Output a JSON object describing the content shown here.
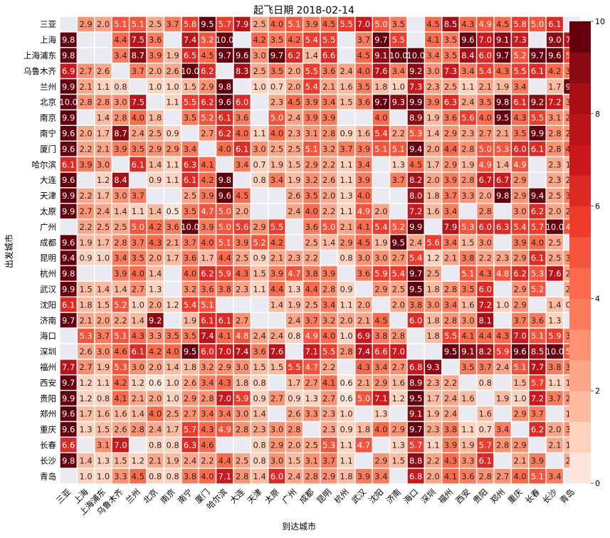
{
  "chart_data": {
    "type": "heatmap",
    "title": "起飞日期 2018-02-14",
    "xlabel": "到达城市",
    "ylabel": "出发城市",
    "x_categories": [
      "三亚",
      "上海",
      "上海浦东",
      "乌鲁木齐",
      "兰州",
      "北京",
      "南京",
      "南宁",
      "厦门",
      "哈尔滨",
      "大连",
      "天津",
      "太原",
      "广州",
      "成都",
      "昆明",
      "杭州",
      "武汉",
      "沈阳",
      "济南",
      "海口",
      "深圳",
      "福州",
      "西安",
      "贵阳",
      "郑州",
      "重庆",
      "长春",
      "长沙",
      "青岛"
    ],
    "y_categories": [
      "三亚",
      "上海",
      "上海浦东",
      "乌鲁木齐",
      "兰州",
      "北京",
      "南京",
      "南宁",
      "厦门",
      "哈尔滨",
      "大连",
      "天津",
      "太原",
      "广州",
      "成都",
      "昆明",
      "杭州",
      "武汉",
      "沈阳",
      "济南",
      "海口",
      "深圳",
      "福州",
      "西安",
      "贵阳",
      "郑州",
      "重庆",
      "长春",
      "长沙",
      "青岛"
    ],
    "vmin": 0,
    "vmax": 10,
    "colorbar_ticks": [
      0,
      2,
      4,
      6,
      8,
      10
    ],
    "colormap": {
      "levels": 15,
      "colors": [
        "#fee5d9",
        "#fdd3c0",
        "#fcbba1",
        "#fca689",
        "#fc9272",
        "#fb7c5c",
        "#fb6a4a",
        "#f4533c",
        "#ef3b2c",
        "#dd2a25",
        "#cb181d",
        "#b91419",
        "#a50f15",
        "#8c0b13",
        "#67000d"
      ],
      "missing_color": "#eaeaf2"
    },
    "values": [
      [
        null,
        2.9,
        2.0,
        5.1,
        5.1,
        2.5,
        3.7,
        5.8,
        9.5,
        5.7,
        7.9,
        2.5,
        4.0,
        5.1,
        3.9,
        4.5,
        5.5,
        7.0,
        5.0,
        3.5,
        null,
        4.5,
        8.5,
        4.3,
        4.9,
        4.5,
        5.8,
        5.0,
        6.1,
        null
      ],
      [
        9.8,
        null,
        null,
        4.4,
        7.5,
        3.6,
        null,
        7.4,
        5.2,
        10.0,
        null,
        4.2,
        3.5,
        4.2,
        5.4,
        5.5,
        null,
        3.7,
        9.7,
        5.5,
        null,
        4.1,
        3.5,
        9.6,
        7.0,
        9.1,
        7.3,
        null,
        9.0,
        7.7
      ],
      [
        9.8,
        null,
        null,
        3.4,
        8.7,
        3.9,
        1.9,
        6.5,
        4.5,
        9.7,
        9.6,
        3.0,
        9.7,
        6.2,
        1.4,
        6.6,
        null,
        4.5,
        9.1,
        10.0,
        10.0,
        3.4,
        3.5,
        8.4,
        6.0,
        9.7,
        5.2,
        9.7,
        9.6,
        5.5
      ],
      [
        6.9,
        2.7,
        2.6,
        null,
        3.7,
        2.0,
        2.6,
        10.0,
        6.2,
        null,
        8.3,
        2.5,
        3.5,
        2.0,
        5.5,
        3.6,
        2.4,
        4.0,
        7.6,
        3.4,
        9.2,
        3.0,
        7.3,
        3.4,
        5.4,
        4.3,
        5.5,
        6.1,
        4.2,
        3.9
      ],
      [
        9.9,
        2.1,
        1.1,
        0.8,
        null,
        1.0,
        1.0,
        1.5,
        2.9,
        9.8,
        null,
        1.0,
        0.7,
        2.0,
        5.4,
        2.1,
        1.6,
        3.5,
        1.8,
        1.0,
        7.3,
        2.3,
        2.5,
        1.1,
        2.1,
        1.9,
        3.4,
        null,
        1.7,
        9.7
      ],
      [
        10.0,
        2.8,
        2.8,
        3.0,
        7.5,
        null,
        1.1,
        5.5,
        6.2,
        9.6,
        6.0,
        null,
        2.3,
        4.5,
        3.9,
        3.4,
        1.5,
        3.6,
        9.7,
        9.3,
        9.9,
        3.9,
        6.3,
        2.4,
        3.5,
        9.8,
        6.1,
        9.2,
        7.2,
        3.1
      ],
      [
        9.9,
        null,
        1.4,
        2.8,
        4.0,
        1.8,
        null,
        3.5,
        5.2,
        6.1,
        3.6,
        null,
        5.0,
        2.4,
        3.9,
        3.9,
        null,
        null,
        4.0,
        null,
        8.9,
        1.9,
        3.6,
        5.6,
        4.0,
        9.5,
        4.3,
        5.5,
        3.1,
        2.7
      ],
      [
        9.6,
        2.0,
        1.7,
        8.7,
        2.4,
        2.5,
        0.9,
        null,
        2.7,
        6.2,
        4.0,
        1.1,
        4.0,
        2.3,
        3.1,
        2.8,
        0.9,
        1.6,
        5.4,
        2.2,
        5.3,
        1.4,
        2.9,
        2.3,
        2.7,
        2.1,
        3.5,
        9.9,
        2.8,
        2.9
      ],
      [
        9.6,
        2.2,
        2.1,
        3.9,
        3.5,
        2.9,
        2.9,
        3.4,
        null,
        4.0,
        6.1,
        3.0,
        2.5,
        2.5,
        5.1,
        3.2,
        3.7,
        3.9,
        5.1,
        5.1,
        9.4,
        2.0,
        4.4,
        2.8,
        5.0,
        5.3,
        6.0,
        6.1,
        2.8,
        4.6
      ],
      [
        6.1,
        3.9,
        3.0,
        null,
        6.1,
        1.4,
        1.1,
        6.3,
        4.1,
        null,
        3.4,
        0.7,
        1.9,
        1.5,
        2.9,
        2.2,
        1.1,
        3.4,
        null,
        1.3,
        4.5,
        1.7,
        2.9,
        1.9,
        4.9,
        1.4,
        4.9,
        null,
        2.3,
        1.8
      ],
      [
        9.6,
        null,
        1.2,
        8.4,
        null,
        0.9,
        1.1,
        6.1,
        4.2,
        9.8,
        null,
        0.8,
        3.4,
        1.9,
        3.2,
        2.6,
        1.1,
        3.9,
        null,
        3.7,
        8.2,
        2.0,
        3.9,
        2.8,
        6.7,
        6.7,
        2.9,
        null,
        2.3,
        2.6
      ],
      [
        9.9,
        2.2,
        1.7,
        3.0,
        3.7,
        null,
        null,
        2.5,
        3.9,
        9.6,
        4.5,
        null,
        null,
        2.6,
        3.5,
        2.0,
        1.3,
        4.0,
        null,
        null,
        8.0,
        1.8,
        3.7,
        3.3,
        2.0,
        9.8,
        2.9,
        9.4,
        2.5,
        3.4
      ],
      [
        9.9,
        2.7,
        2.4,
        1.4,
        1.1,
        1.4,
        0.5,
        3.5,
        4.7,
        5.0,
        2.0,
        null,
        null,
        2.4,
        4.0,
        2.2,
        1.1,
        4.9,
        2.0,
        null,
        7.2,
        1.6,
        3.4,
        null,
        2.8,
        null,
        3.0,
        6.2,
        2.0,
        2.7
      ],
      [
        null,
        2.2,
        2.5,
        2.5,
        5.0,
        4.2,
        3.6,
        10.0,
        3.9,
        5.0,
        5.6,
        2.9,
        5.5,
        null,
        3.6,
        5.0,
        2.1,
        4.1,
        5.4,
        5.2,
        9.9,
        null,
        7.9,
        5.3,
        6.0,
        6.3,
        5.4,
        5.7,
        10.0,
        4.9
      ],
      [
        9.6,
        1.9,
        1.7,
        2.8,
        3.7,
        4.3,
        2.1,
        3.7,
        4.0,
        5.1,
        3.9,
        5.2,
        4.2,
        null,
        2.5,
        1.4,
        2.9,
        4.5,
        1.9,
        9.5,
        2.4,
        5.6,
        3.4,
        1.5,
        3.0,
        null,
        3.9,
        4.0,
        2.5,
        null
      ],
      [
        9.4,
        0.9,
        1.0,
        3.4,
        3.5,
        2.0,
        1.7,
        3.6,
        1.7,
        4.4,
        2.5,
        0.9,
        2.1,
        2.3,
        2.2,
        null,
        0.8,
        3.0,
        3.0,
        2.7,
        5.4,
        1.2,
        2.1,
        3.8,
        2.2,
        2.3,
        2.9,
        6.1,
        2.5,
        3.2
      ],
      [
        9.8,
        null,
        null,
        3.9,
        4.0,
        1.4,
        null,
        4.0,
        6.2,
        5.9,
        4.3,
        1.5,
        3.9,
        4.7,
        3.8,
        3.9,
        null,
        3.6,
        5.9,
        5.4,
        9.7,
        2.5,
        null,
        5.1,
        4.3,
        4.8,
        6.2,
        5.3,
        7.6,
        2.4
      ],
      [
        9.9,
        1.5,
        1.4,
        1.4,
        2.7,
        1.3,
        null,
        3.2,
        3.6,
        3.8,
        2.3,
        1.1,
        4.4,
        1.3,
        4.4,
        2.8,
        0.9,
        null,
        2.9,
        2.5,
        9.5,
        1.8,
        2.8,
        3.5,
        6.0,
        null,
        2.9,
        5.2,
        null,
        2.0
      ],
      [
        6.1,
        1.8,
        1.5,
        5.2,
        1.0,
        2.0,
        1.2,
        5.4,
        5.1,
        null,
        null,
        null,
        1.4,
        1.9,
        2.5,
        3.4,
        1.1,
        2.0,
        null,
        2.0,
        3.8,
        3.0,
        3.4,
        1.6,
        7.2,
        1.0,
        2.9,
        null,
        1.4,
        0.9
      ],
      [
        9.7,
        2.1,
        2.0,
        2.2,
        1.4,
        9.2,
        null,
        1.9,
        6.1,
        6.1,
        2.7,
        null,
        null,
        2.4,
        3.7,
        3.2,
        2.0,
        2.1,
        4.5,
        null,
        6.0,
        1.8,
        2.8,
        3.0,
        8.1,
        null,
        3.7,
        3.6,
        1.3,
        null
      ],
      [
        null,
        5.3,
        3.7,
        5.1,
        4.3,
        3.3,
        3.5,
        3.5,
        7.4,
        4.1,
        4.8,
        2.4,
        2.4,
        0.8,
        4.9,
        4.0,
        1.0,
        6.9,
        3.8,
        2.8,
        null,
        1.8,
        5.5,
        4.1,
        4.4,
        4.3,
        7.0,
        5.1,
        5.9,
        3.4
      ],
      [
        null,
        2.6,
        3.0,
        4.6,
        6.1,
        4.2,
        4.0,
        9.5,
        6.0,
        7.0,
        7.4,
        3.6,
        7.6,
        null,
        7.1,
        5.5,
        2.8,
        7.4,
        6.6,
        7.0,
        null,
        null,
        9.5,
        9.1,
        8.2,
        5.9,
        9.6,
        8.5,
        10.0,
        5.2
      ],
      [
        7.7,
        2.7,
        1.9,
        5.3,
        3.0,
        2.0,
        1.4,
        1.8,
        3.2,
        2.9,
        3.0,
        1.5,
        1.5,
        5.5,
        4.7,
        2.2,
        null,
        4.3,
        3.4,
        2.7,
        6.8,
        9.3,
        null,
        3.5,
        3.7,
        2.4,
        5.1,
        7.7,
        3.8,
        3.4
      ],
      [
        9.7,
        1.2,
        1.1,
        4.2,
        1.2,
        0.6,
        1.0,
        2.6,
        3.4,
        4.3,
        1.8,
        0.8,
        null,
        1.7,
        2.7,
        4.1,
        0.6,
        2.1,
        2.9,
        1.6,
        8.9,
        2.3,
        2.2,
        null,
        0.8,
        null,
        1.5,
        5.7,
        1.1,
        1.8
      ],
      [
        9.9,
        1.2,
        0.8,
        4.1,
        2.1,
        2.0,
        1.0,
        2.9,
        2.8,
        7.0,
        5.9,
        0.9,
        2.7,
        0.9,
        1.3,
        2.7,
        0.6,
        5.0,
        7.1,
        1.2,
        9.5,
        1.7,
        2.4,
        1.6,
        null,
        1.9,
        1.0,
        7.2,
        3.7,
        2.8
      ],
      [
        9.6,
        1.7,
        1.6,
        1.6,
        1.4,
        4.0,
        2.5,
        2.7,
        3.4,
        3.4,
        3.0,
        1.4,
        null,
        2.6,
        3.3,
        2.3,
        1.0,
        null,
        1.3,
        null,
        9.1,
        1.9,
        2.4,
        null,
        1.6,
        null,
        2.9,
        3.7,
        null,
        1.6
      ],
      [
        9.6,
        1.3,
        1.5,
        2.6,
        2.8,
        2.4,
        1.7,
        5.7,
        4.3,
        4.9,
        2.8,
        2.3,
        3.0,
        2.8,
        null,
        2.3,
        0.9,
        1.8,
        4.0,
        2.9,
        9.7,
        2.3,
        3.8,
        1.1,
        0.7,
        3.4,
        null,
        6.2,
        2.0,
        3.3
      ],
      [
        6.6,
        null,
        3.1,
        7.0,
        null,
        0.8,
        0.8,
        6.3,
        4.6,
        null,
        null,
        0.8,
        2.9,
        2.0,
        2.5,
        5.3,
        1.1,
        4.7,
        null,
        1.3,
        5.7,
        1.1,
        3.9,
        1.9,
        5.7,
        2.8,
        2.9,
        null,
        2.1,
        1.4
      ],
      [
        9.8,
        1.4,
        1.3,
        1.5,
        1.2,
        2.1,
        1.9,
        2.4,
        2.2,
        4.4,
        2.5,
        0.8,
        3.0,
        1.5,
        3.1,
        3.7,
        1.1,
        null,
        2.9,
        1.5,
        8.8,
        2.2,
        4.3,
        3.3,
        6.1,
        null,
        2.1,
        3.9,
        null,
        2.6
      ],
      [
        null,
        1.0,
        1.0,
        3.3,
        4.5,
        0.8,
        0.8,
        3.8,
        4.0,
        7.1,
        2.8,
        1.4,
        6.0,
        2.4,
        2.8,
        2.9,
        1.8,
        3.9,
        3.4,
        null,
        6.8,
        2.0,
        4.1,
        3.6,
        2.8,
        2.7,
        4.0,
        5.1,
        3.4,
        null
      ]
    ]
  }
}
